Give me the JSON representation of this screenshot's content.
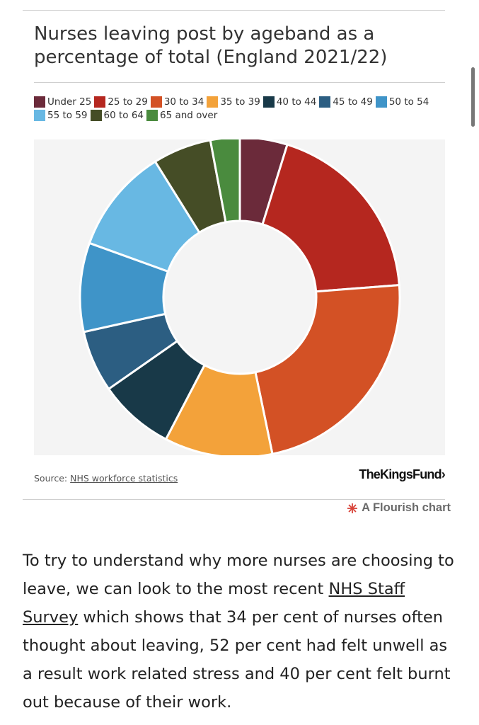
{
  "chart_data": {
    "type": "pie",
    "variant": "donut",
    "title": "Nurses leaving post by ageband as a percentage of total (England 2021/22)",
    "categories": [
      "Under 25",
      "25 to 29",
      "30 to 34",
      "35 to 39",
      "40 to 44",
      "45 to 49",
      "50 to 54",
      "55 to 59",
      "60 to 64",
      "65 and over"
    ],
    "values": [
      4.7,
      18.6,
      22.5,
      10.7,
      7.5,
      6.1,
      8.8,
      10.4,
      5.8,
      2.9
    ],
    "unit": "percent",
    "colors": [
      "#6b2a3a",
      "#b5271f",
      "#d35125",
      "#f3a23a",
      "#183948",
      "#2c5e82",
      "#3f94c8",
      "#68b8e3",
      "#454d26",
      "#4a8b3e"
    ],
    "legend_position": "top",
    "start_angle_deg": 0,
    "direction": "clockwise"
  },
  "source": {
    "label": "Source:",
    "link_text": "NHS workforce statistics"
  },
  "brand": "TheKingsFund›",
  "flourish": {
    "label": "A Flourish chart",
    "icon": "flourish-asterisk-icon",
    "icon_color": "#d8443a"
  },
  "article": {
    "text_before": "To try to understand why more nurses are choosing to leave, we can look to the most recent ",
    "link_text": "NHS Staff Survey",
    "text_after": " which shows that 34 per cent of nurses often thought about leaving, 52 per cent had felt unwell as a result work related stress and 40 per cent felt burnt out because of their work."
  }
}
